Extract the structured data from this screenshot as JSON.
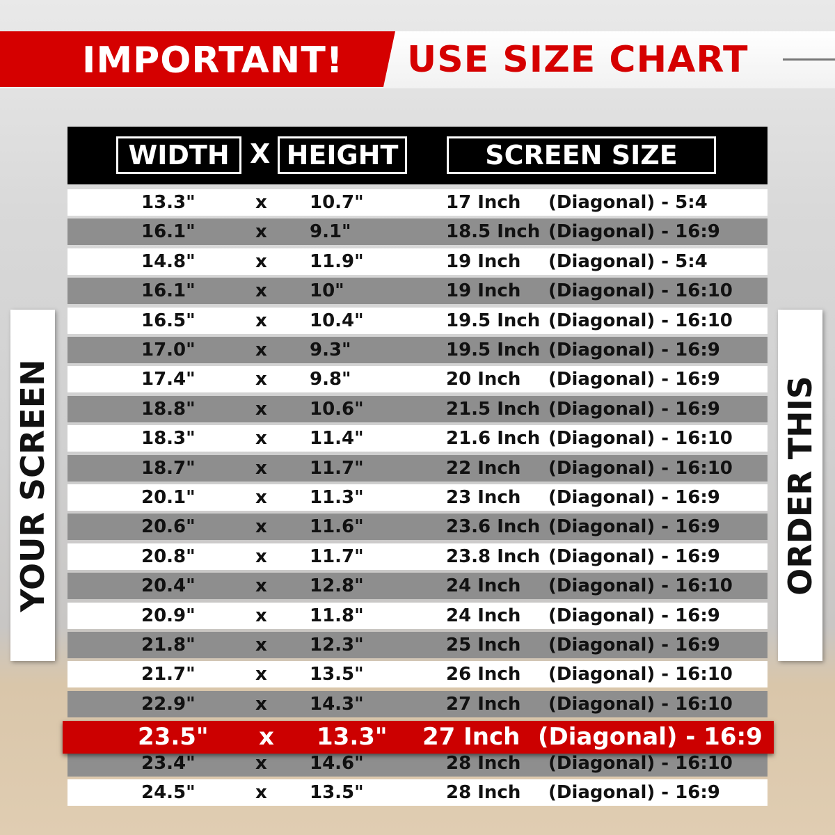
{
  "banner": {
    "important": "IMPORTANT!",
    "use_size_chart": "USE SIZE CHART"
  },
  "header": {
    "width": "WIDTH",
    "x": "X",
    "height": "HEIGHT",
    "screen_size": "SCREEN SIZE"
  },
  "side": {
    "left": "YOUR SCREEN",
    "right": "ORDER THIS"
  },
  "colors": {
    "accent": "#d50000",
    "row_gray": "#8e8e8e"
  },
  "rows": [
    {
      "w": "13.3\"",
      "x": "x",
      "h": "10.7\"",
      "size": "17 Inch",
      "diag": "(Diagonal) - 5:4"
    },
    {
      "w": "16.1\"",
      "x": "x",
      "h": "9.1\"",
      "size": "18.5 Inch",
      "diag": "(Diagonal) - 16:9"
    },
    {
      "w": "14.8\"",
      "x": "x",
      "h": "11.9\"",
      "size": "19 Inch",
      "diag": "(Diagonal) - 5:4"
    },
    {
      "w": "16.1\"",
      "x": "x",
      "h": "10\"",
      "size": "19 Inch",
      "diag": "(Diagonal) - 16:10"
    },
    {
      "w": "16.5\"",
      "x": "x",
      "h": "10.4\"",
      "size": "19.5 Inch",
      "diag": "(Diagonal) - 16:10"
    },
    {
      "w": "17.0\"",
      "x": "x",
      "h": "9.3\"",
      "size": "19.5 Inch",
      "diag": "(Diagonal) - 16:9"
    },
    {
      "w": "17.4\"",
      "x": "x",
      "h": "9.8\"",
      "size": "20 Inch",
      "diag": "(Diagonal) - 16:9"
    },
    {
      "w": "18.8\"",
      "x": "x",
      "h": "10.6\"",
      "size": "21.5 Inch",
      "diag": "(Diagonal) - 16:9"
    },
    {
      "w": "18.3\"",
      "x": "x",
      "h": "11.4\"",
      "size": "21.6 Inch",
      "diag": "(Diagonal) - 16:10"
    },
    {
      "w": "18.7\"",
      "x": "x",
      "h": "11.7\"",
      "size": "22 Inch",
      "diag": "(Diagonal) - 16:10"
    },
    {
      "w": "20.1\"",
      "x": "x",
      "h": "11.3\"",
      "size": "23 Inch",
      "diag": "(Diagonal) - 16:9"
    },
    {
      "w": "20.6\"",
      "x": "x",
      "h": "11.6\"",
      "size": "23.6 Inch",
      "diag": "(Diagonal) - 16:9"
    },
    {
      "w": "20.8\"",
      "x": "x",
      "h": "11.7\"",
      "size": "23.8 Inch",
      "diag": "(Diagonal) - 16:9"
    },
    {
      "w": "20.4\"",
      "x": "x",
      "h": "12.8\"",
      "size": "24 Inch",
      "diag": "(Diagonal) - 16:10"
    },
    {
      "w": "20.9\"",
      "x": "x",
      "h": "11.8\"",
      "size": "24 Inch",
      "diag": "(Diagonal) - 16:9"
    },
    {
      "w": "21.8\"",
      "x": "x",
      "h": "12.3\"",
      "size": "25 Inch",
      "diag": "(Diagonal) - 16:9"
    },
    {
      "w": "21.7\"",
      "x": "x",
      "h": "13.5\"",
      "size": "26 Inch",
      "diag": "(Diagonal) - 16:10"
    },
    {
      "w": "22.9\"",
      "x": "x",
      "h": "14.3\"",
      "size": "27 Inch",
      "diag": "(Diagonal) - 16:10"
    },
    {
      "w": "23.5\"",
      "x": "x",
      "h": "13.3\"",
      "size": "27 Inch",
      "diag": "(Diagonal) - 16:9",
      "highlight": true
    },
    {
      "w": "23.4\"",
      "x": "x",
      "h": "14.6\"",
      "size": "28 Inch",
      "diag": "(Diagonal) - 16:10"
    },
    {
      "w": "24.5\"",
      "x": "x",
      "h": "13.5\"",
      "size": "28 Inch",
      "diag": "(Diagonal) - 16:9"
    }
  ]
}
